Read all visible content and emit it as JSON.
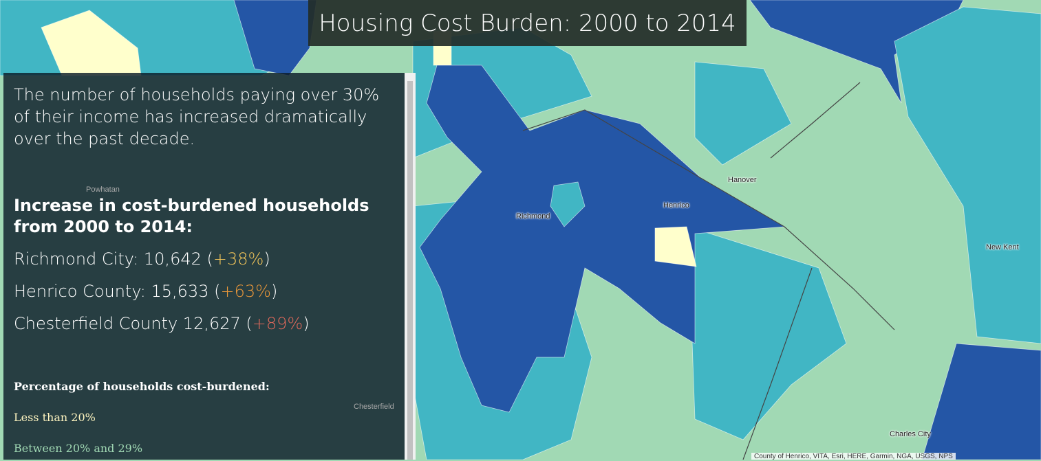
{
  "title": "Housing Cost Burden: 2000 to 2014",
  "panel": {
    "intro": "The number of households paying over 30% of their income has increased dramatically over the past decade.",
    "heading": "Increase in cost-burdened households from 2000 to 2014:",
    "stats": [
      {
        "prefix": "Richmond City: 10,642 (",
        "change": "+38%",
        "suffix": ")"
      },
      {
        "prefix": "Henrico County: 15,633 (",
        "change": "+63%",
        "suffix": ")"
      },
      {
        "prefix": "Chesterfield County 12,627 (",
        "change": "+89%",
        "suffix": ")"
      }
    ],
    "legend": {
      "title": "Percentage of households cost-burdened:",
      "items": [
        "Less than 20%",
        "Between 20% and 29%"
      ]
    }
  },
  "map_labels": [
    "Powhatan",
    "Richmond",
    "Henrico",
    "Hanover",
    "New Kent",
    "Chesterfield",
    "Charles City"
  ],
  "attribution": "County of Henrico, VITA, Esri, HERE, Garmin, NGA, USGS, NPS"
}
